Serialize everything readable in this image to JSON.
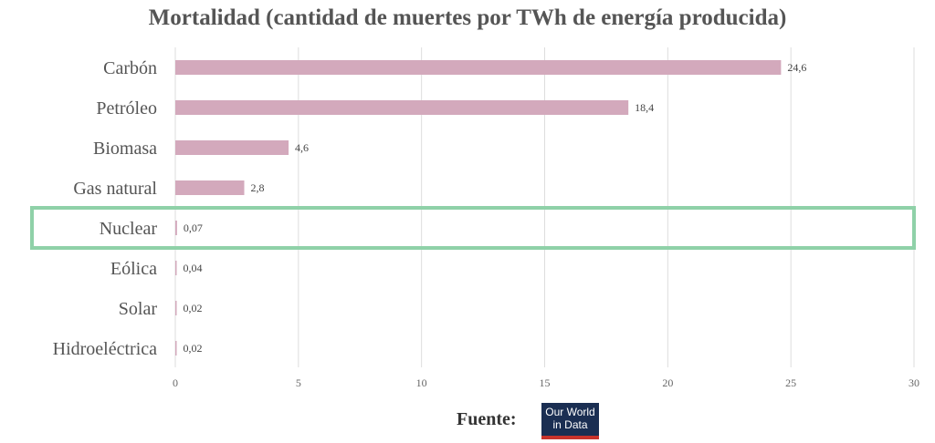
{
  "chart_data": {
    "type": "bar",
    "orientation": "horizontal",
    "title": "Mortalidad (cantidad de muertes por TWh de energía producida)",
    "categories": [
      "Carbón",
      "Petróleo",
      "Biomasa",
      "Gas natural",
      "Nuclear",
      "Eólica",
      "Solar",
      "Hidroeléctrica"
    ],
    "values": [
      24.6,
      18.4,
      4.6,
      2.8,
      0.07,
      0.04,
      0.02,
      0.02
    ],
    "value_labels": [
      "24,6",
      "18,4",
      "4,6",
      "2,8",
      "0,07",
      "0,04",
      "0,02",
      "0,02"
    ],
    "xlim": [
      0,
      30
    ],
    "xticks": [
      0,
      5,
      10,
      15,
      20,
      25,
      30
    ],
    "grid": "vertical",
    "highlight": "Nuclear",
    "bar_color": "#d3a9bc",
    "highlight_color": "#8fd1a8"
  },
  "source_label": "Fuente:",
  "logo": {
    "line1": "Our World",
    "line2": "in Data",
    "background": "#1a2e52",
    "accent": "#c8332b"
  }
}
